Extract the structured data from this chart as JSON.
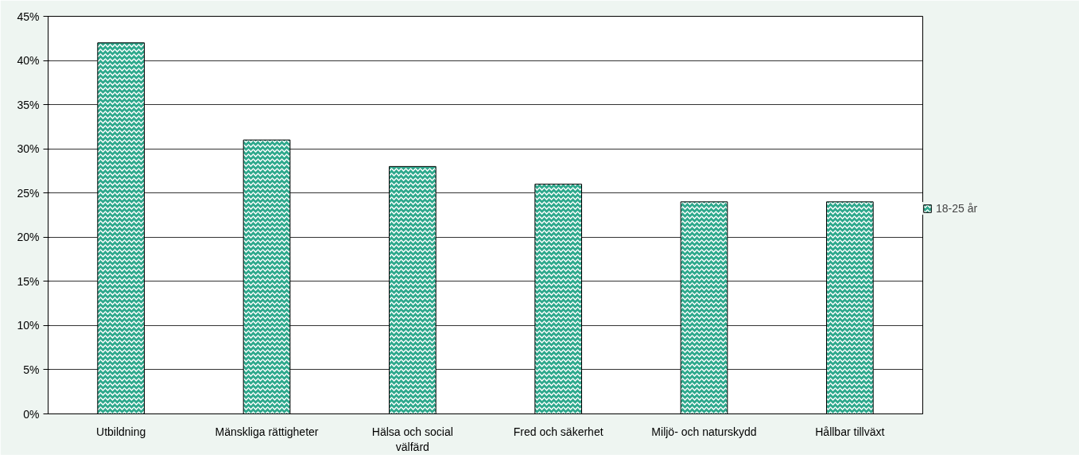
{
  "chart_data": {
    "type": "bar",
    "categories": [
      "Utbildning",
      "Mänskliga rättigheter",
      "Hälsa och social välfärd",
      "Fred och säkerhet",
      "Miljö- och naturskydd",
      "Hållbar tillväxt"
    ],
    "series": [
      {
        "name": "18-25 år",
        "color": "#2ea88c",
        "values": [
          42,
          31,
          28,
          26,
          24,
          24
        ]
      }
    ],
    "ylim": [
      0,
      45
    ],
    "yticks": [
      {
        "value": 0,
        "label": "0%"
      },
      {
        "value": 5,
        "label": "5%"
      },
      {
        "value": 10,
        "label": "10%"
      },
      {
        "value": 15,
        "label": "15%"
      },
      {
        "value": 20,
        "label": "20%"
      },
      {
        "value": 25,
        "label": "25%"
      },
      {
        "value": 30,
        "label": "30%"
      },
      {
        "value": 35,
        "label": "35%"
      },
      {
        "value": 40,
        "label": "40%"
      },
      {
        "value": 45,
        "label": "45%"
      }
    ],
    "grid": "y",
    "legend": "right"
  }
}
